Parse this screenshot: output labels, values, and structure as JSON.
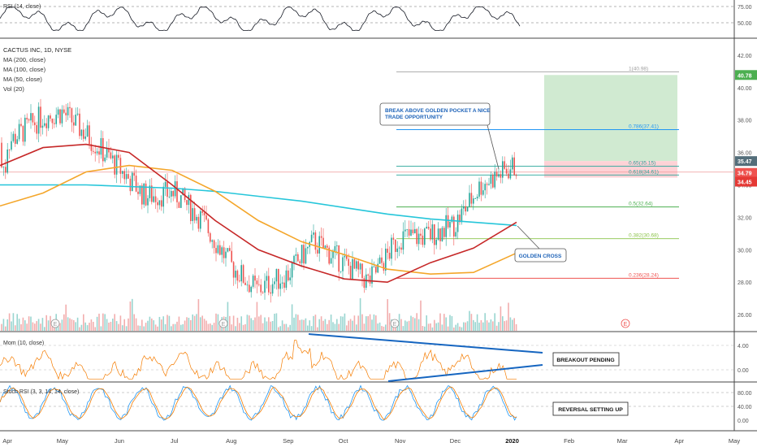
{
  "chart_data": {
    "type": "line",
    "symbol_title": "CACTUS INC, 1D, NYSE",
    "indicators_main": [
      "MA (200, close)",
      "MA (100, close)",
      "MA (50, close)",
      "Vol (20)"
    ],
    "panes": {
      "rsi": {
        "label": "RSI (14, close)",
        "ticks": [
          "75.00",
          "50.00"
        ]
      },
      "price": {
        "ticks": [
          "42.00",
          "40.00",
          "38.00",
          "36.00",
          "34.00",
          "32.00",
          "30.00",
          "28.00",
          "26.00"
        ],
        "ylim": [
          25,
          43
        ]
      },
      "mom": {
        "label": "Mom (10, close)",
        "ticks": [
          "4.00",
          "0.00"
        ]
      },
      "stoch": {
        "label": "Stoch RSI (3, 3, 14, 14, close)",
        "ticks": [
          "80.00",
          "40.00",
          "0.00"
        ]
      }
    },
    "x_ticks": [
      "Apr",
      "May",
      "Jun",
      "Jul",
      "Aug",
      "Sep",
      "Oct",
      "Nov",
      "Dec",
      "2020",
      "Feb",
      "Mar",
      "Apr",
      "May"
    ],
    "close_series": {
      "x": [
        "2019-04-01",
        "2019-04-20",
        "2019-05-01",
        "2019-05-15",
        "2019-06-01",
        "2019-06-15",
        "2019-07-01",
        "2019-07-15",
        "2019-08-01",
        "2019-08-15",
        "2019-09-01",
        "2019-09-15",
        "2019-10-01",
        "2019-10-15",
        "2019-11-01",
        "2019-11-15",
        "2019-12-01",
        "2019-12-15",
        "2020-01-01"
      ],
      "y": [
        36.6,
        38.2,
        38.5,
        37.0,
        35.0,
        33.3,
        33.5,
        32.0,
        29.0,
        27.5,
        28.5,
        30.5,
        29.2,
        28.0,
        30.8,
        30.8,
        31.6,
        34.0,
        35.1
      ]
    },
    "moving_averages": [
      {
        "name": "MA (200, close)",
        "color": "#26c6da",
        "y": [
          34.0,
          34.0,
          34.0,
          33.9,
          33.8,
          33.6,
          33.3,
          33.0,
          32.6,
          32.2,
          31.9,
          31.7,
          31.5
        ]
      },
      {
        "name": "MA (100, close)",
        "color": "#f4a62a",
        "y": [
          32.7,
          33.5,
          34.8,
          35.2,
          34.9,
          33.6,
          31.8,
          30.5,
          29.7,
          28.8,
          28.5,
          28.6,
          29.8
        ]
      },
      {
        "name": "MA (50, close)",
        "color": "#c62828",
        "y": [
          35.2,
          36.3,
          36.5,
          36.0,
          34.0,
          31.8,
          30.0,
          29.0,
          28.2,
          28.0,
          29.2,
          30.1,
          31.7
        ]
      }
    ],
    "fib_levels": [
      {
        "label": "1(40.98)",
        "value": 40.98,
        "color": "#9e9e9e"
      },
      {
        "label": "0.786(37.41)",
        "value": 37.41,
        "color": "#2196f3"
      },
      {
        "label": "0.65(35.15)",
        "value": 35.15,
        "color": "#26a69a"
      },
      {
        "label": "0.618(34.61)",
        "value": 34.61,
        "color": "#26a69a"
      },
      {
        "label": "0.5(32.64)",
        "value": 32.64,
        "color": "#4caf50"
      },
      {
        "label": "0.382(30.68)",
        "value": 30.68,
        "color": "#8bc34a"
      },
      {
        "label": "0.236(28.24)",
        "value": 28.24,
        "color": "#ef5350"
      }
    ],
    "price_badges": [
      {
        "text": "40.78",
        "value": 40.78,
        "color": "#4caf50"
      },
      {
        "text": "35.47",
        "value": 35.47,
        "color": "#546e7a"
      },
      {
        "text": "34.79",
        "value": 34.79,
        "color": "#ef5350"
      },
      {
        "text": "34.45",
        "value": 34.45,
        "color": "#e53935"
      }
    ],
    "position": {
      "target": 40.78,
      "entry": 35.47,
      "stop": 34.45
    },
    "annotations": {
      "breakout_callout": "BREAK ABOVE GOLDEN POCKET A NICE TRADE OPPORTUNITY",
      "golden_cross": "GOLDEN CROSS",
      "breakout_pending": "BREAKOUT PENDING",
      "reversal": "REVERSAL SETTING UP",
      "earnings_marker": "E"
    },
    "colors": {
      "up": "#26a69a",
      "down": "#ef5350",
      "rsi": "#131722",
      "mom": "#f57c00",
      "stoch_k": "#2196f3",
      "stoch_d": "#f57c00",
      "trendline": "#1565c0"
    }
  }
}
